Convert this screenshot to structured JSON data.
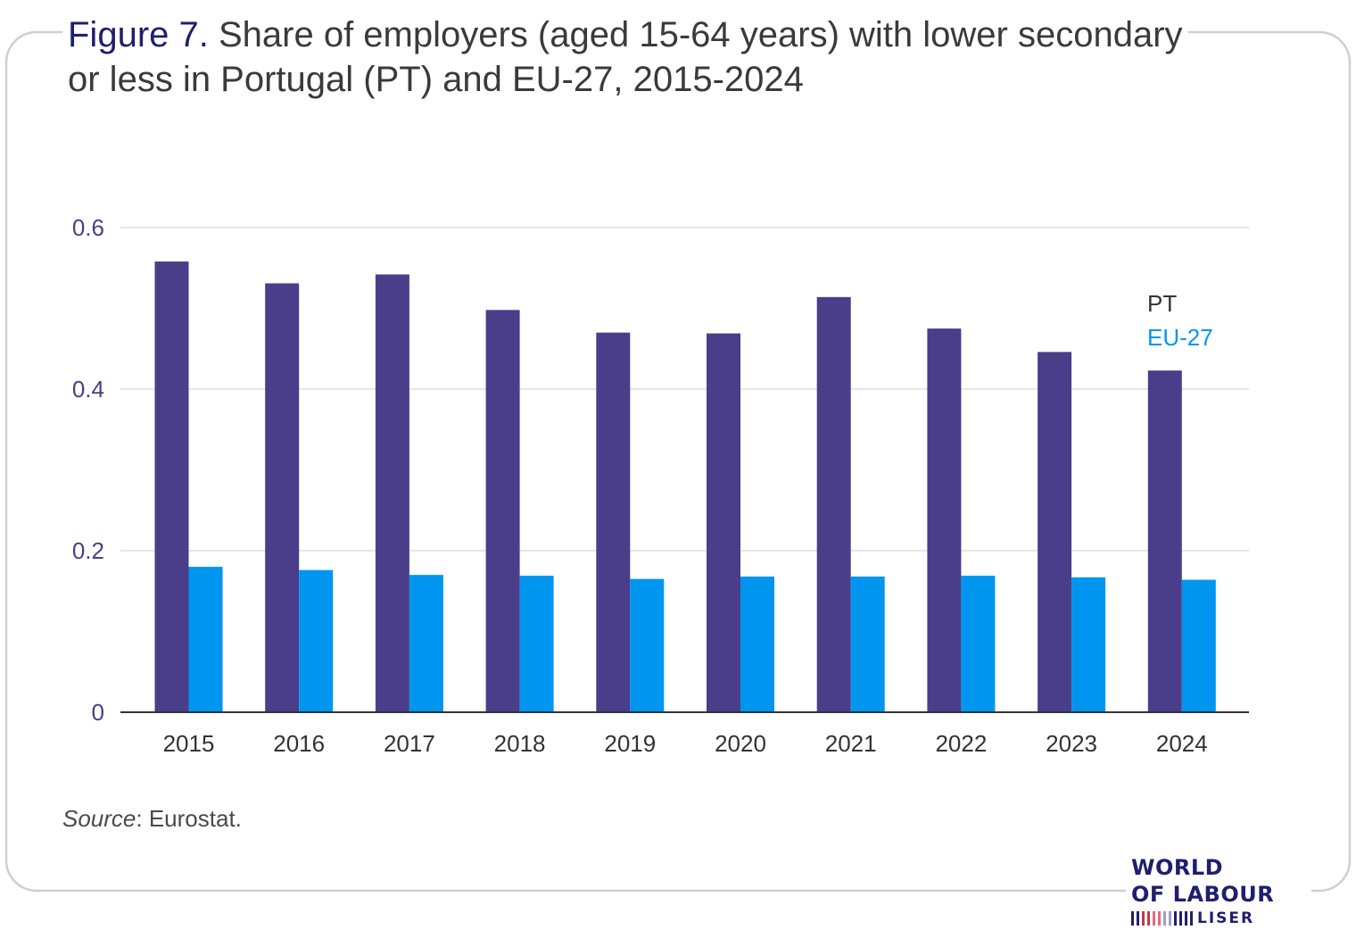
{
  "title": {
    "figure_label": "Figure 7.",
    "text": "Share of employers (aged 15-64 years) with lower secondary or less in Portugal (PT) and EU-27, 2015-2024"
  },
  "source": {
    "label": "Source",
    "text": ": Eurostat."
  },
  "logo": {
    "line1": "WORLD",
    "line2": "OF LABOUR",
    "line3": "LISER"
  },
  "colors": {
    "pt": "#4a3e8a",
    "eu": "#0096f0",
    "axis_text": "#4a3e8a",
    "grid": "#dddddd"
  },
  "chart_data": {
    "type": "bar",
    "categories": [
      "2015",
      "2016",
      "2017",
      "2018",
      "2019",
      "2020",
      "2021",
      "2022",
      "2023",
      "2024"
    ],
    "series": [
      {
        "name": "PT",
        "values": [
          0.558,
          0.531,
          0.542,
          0.498,
          0.47,
          0.469,
          0.514,
          0.475,
          0.446,
          0.423
        ]
      },
      {
        "name": "EU-27",
        "values": [
          0.18,
          0.176,
          0.17,
          0.169,
          0.165,
          0.168,
          0.168,
          0.169,
          0.167,
          0.164
        ]
      }
    ],
    "y_ticks": [
      "0",
      "0.2",
      "0.4",
      "0.6"
    ],
    "ylim": [
      0,
      0.6
    ],
    "grid": true,
    "legend_position": "right, inline labels",
    "title": "Share of employers (aged 15-64 years) with lower secondary or less in Portugal (PT) and EU-27, 2015-2024",
    "xlabel": "",
    "ylabel": ""
  }
}
